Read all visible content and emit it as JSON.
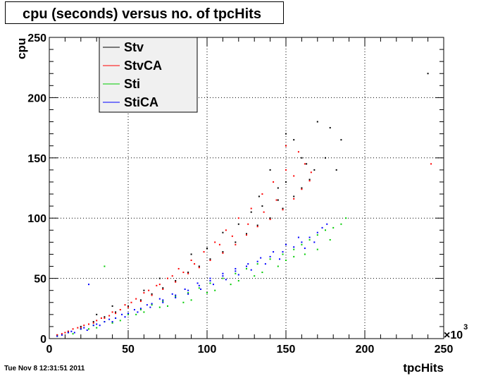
{
  "header": {
    "title": "cpu (seconds) versus no. of tpcHits"
  },
  "footer": {
    "date": "Tue Nov  8 12:31:51 2011"
  },
  "chart_data": {
    "type": "scatter",
    "title": "cpu (seconds) versus no. of tpcHits",
    "xlabel": "tpcHits",
    "ylabel": "cpu",
    "x_multiplier_label": "×10",
    "x_multiplier_exponent": "3",
    "xlim": [
      0,
      250
    ],
    "ylim": [
      0,
      250
    ],
    "x_ticks": [
      "0",
      "50",
      "100",
      "150",
      "200",
      "250"
    ],
    "y_ticks": [
      "0",
      "50",
      "100",
      "150",
      "200",
      "250"
    ],
    "grid": true,
    "legend_position": "top-left",
    "series": [
      {
        "name": "Stv",
        "color": "#000000",
        "points": [
          [
            5,
            3
          ],
          [
            12,
            6
          ],
          [
            20,
            10
          ],
          [
            28,
            14
          ],
          [
            35,
            18
          ],
          [
            42,
            22
          ],
          [
            50,
            27
          ],
          [
            58,
            32
          ],
          [
            65,
            37
          ],
          [
            72,
            42
          ],
          [
            80,
            48
          ],
          [
            88,
            55
          ],
          [
            95,
            60
          ],
          [
            102,
            66
          ],
          [
            110,
            72
          ],
          [
            118,
            80
          ],
          [
            125,
            87
          ],
          [
            132,
            94
          ],
          [
            140,
            100
          ],
          [
            148,
            108
          ],
          [
            155,
            118
          ],
          [
            160,
            125
          ],
          [
            165,
            132
          ],
          [
            150,
            170
          ],
          [
            155,
            165
          ],
          [
            170,
            180
          ],
          [
            178,
            175
          ],
          [
            185,
            165
          ],
          [
            175,
            150
          ],
          [
            182,
            140
          ],
          [
            160,
            150
          ],
          [
            168,
            140
          ],
          [
            140,
            140
          ],
          [
            145,
            125
          ],
          [
            133,
            118
          ],
          [
            128,
            105
          ],
          [
            60,
            40
          ],
          [
            70,
            50
          ],
          [
            40,
            27
          ],
          [
            30,
            20
          ],
          [
            90,
            70
          ],
          [
            100,
            75
          ],
          [
            110,
            88
          ],
          [
            120,
            95
          ],
          [
            135,
            110
          ],
          [
            145,
            115
          ],
          [
            150,
            130
          ],
          [
            163,
            145
          ],
          [
            240,
            220
          ]
        ]
      },
      {
        "name": "StvCA",
        "color": "#ff0000",
        "points": [
          [
            5,
            3
          ],
          [
            12,
            6
          ],
          [
            20,
            9
          ],
          [
            28,
            13
          ],
          [
            35,
            17
          ],
          [
            42,
            21
          ],
          [
            50,
            26
          ],
          [
            58,
            31
          ],
          [
            65,
            36
          ],
          [
            72,
            41
          ],
          [
            80,
            47
          ],
          [
            88,
            54
          ],
          [
            95,
            59
          ],
          [
            102,
            65
          ],
          [
            110,
            71
          ],
          [
            118,
            78
          ],
          [
            125,
            86
          ],
          [
            132,
            93
          ],
          [
            140,
            99
          ],
          [
            148,
            107
          ],
          [
            155,
            116
          ],
          [
            160,
            124
          ],
          [
            165,
            131
          ],
          [
            150,
            160
          ],
          [
            158,
            155
          ],
          [
            162,
            145
          ],
          [
            150,
            140
          ],
          [
            142,
            130
          ],
          [
            135,
            120
          ],
          [
            128,
            108
          ],
          [
            120,
            100
          ],
          [
            112,
            90
          ],
          [
            105,
            80
          ],
          [
            98,
            72
          ],
          [
            90,
            65
          ],
          [
            82,
            58
          ],
          [
            75,
            50
          ],
          [
            68,
            44
          ],
          [
            60,
            38
          ],
          [
            52,
            30
          ],
          [
            45,
            24
          ],
          [
            38,
            19
          ],
          [
            30,
            15
          ],
          [
            22,
            11
          ],
          [
            15,
            8
          ],
          [
            8,
            4
          ],
          [
            166,
            138
          ],
          [
            155,
            135
          ],
          [
            144,
            115
          ],
          [
            136,
            105
          ],
          [
            126,
            95
          ],
          [
            116,
            85
          ],
          [
            108,
            78
          ],
          [
            92,
            62
          ],
          [
            85,
            55
          ],
          [
            78,
            52
          ],
          [
            70,
            45
          ],
          [
            63,
            40
          ],
          [
            55,
            33
          ],
          [
            48,
            28
          ],
          [
            40,
            22
          ],
          [
            33,
            17
          ],
          [
            25,
            12
          ],
          [
            18,
            9
          ],
          [
            10,
            5
          ],
          [
            242,
            145
          ]
        ]
      },
      {
        "name": "Sti",
        "color": "#00cc00",
        "points": [
          [
            5,
            2
          ],
          [
            12,
            5
          ],
          [
            20,
            8
          ],
          [
            28,
            11
          ],
          [
            35,
            14
          ],
          [
            42,
            17
          ],
          [
            50,
            20
          ],
          [
            58,
            24
          ],
          [
            65,
            28
          ],
          [
            72,
            31
          ],
          [
            80,
            35
          ],
          [
            88,
            38
          ],
          [
            95,
            42
          ],
          [
            102,
            46
          ],
          [
            110,
            50
          ],
          [
            118,
            54
          ],
          [
            125,
            58
          ],
          [
            132,
            62
          ],
          [
            140,
            66
          ],
          [
            148,
            70
          ],
          [
            155,
            74
          ],
          [
            160,
            78
          ],
          [
            165,
            82
          ],
          [
            170,
            86
          ],
          [
            175,
            90
          ],
          [
            180,
            92
          ],
          [
            185,
            95
          ],
          [
            188,
            100
          ],
          [
            145,
            60
          ],
          [
            150,
            65
          ],
          [
            135,
            55
          ],
          [
            120,
            48
          ],
          [
            105,
            40
          ],
          [
            90,
            32
          ],
          [
            75,
            27
          ],
          [
            60,
            22
          ],
          [
            45,
            15
          ],
          [
            30,
            9
          ],
          [
            15,
            4
          ],
          [
            170,
            74
          ],
          [
            178,
            82
          ],
          [
            162,
            70
          ],
          [
            155,
            68
          ],
          [
            130,
            52
          ],
          [
            115,
            45
          ],
          [
            100,
            38
          ],
          [
            85,
            30
          ],
          [
            70,
            26
          ],
          [
            55,
            20
          ],
          [
            40,
            13
          ],
          [
            25,
            8
          ],
          [
            35,
            60
          ]
        ]
      },
      {
        "name": "StiCA",
        "color": "#0000ff",
        "points": [
          [
            5,
            2
          ],
          [
            12,
            5
          ],
          [
            20,
            8
          ],
          [
            28,
            11
          ],
          [
            35,
            14
          ],
          [
            42,
            17
          ],
          [
            50,
            21
          ],
          [
            58,
            25
          ],
          [
            65,
            29
          ],
          [
            72,
            32
          ],
          [
            80,
            36
          ],
          [
            88,
            40
          ],
          [
            95,
            44
          ],
          [
            102,
            48
          ],
          [
            110,
            52
          ],
          [
            118,
            56
          ],
          [
            125,
            60
          ],
          [
            132,
            64
          ],
          [
            140,
            68
          ],
          [
            148,
            72
          ],
          [
            155,
            76
          ],
          [
            160,
            80
          ],
          [
            165,
            84
          ],
          [
            170,
            88
          ],
          [
            173,
            92
          ],
          [
            176,
            95
          ],
          [
            158,
            84
          ],
          [
            150,
            78
          ],
          [
            142,
            72
          ],
          [
            134,
            67
          ],
          [
            126,
            62
          ],
          [
            118,
            58
          ],
          [
            110,
            54
          ],
          [
            102,
            50
          ],
          [
            94,
            46
          ],
          [
            86,
            41
          ],
          [
            78,
            37
          ],
          [
            70,
            33
          ],
          [
            62,
            28
          ],
          [
            54,
            24
          ],
          [
            46,
            20
          ],
          [
            38,
            16
          ],
          [
            30,
            12
          ],
          [
            22,
            9
          ],
          [
            14,
            6
          ],
          [
            8,
            3
          ],
          [
            168,
            80
          ],
          [
            162,
            75
          ],
          [
            146,
            66
          ],
          [
            137,
            62
          ],
          [
            128,
            57
          ],
          [
            120,
            53
          ],
          [
            112,
            49
          ],
          [
            104,
            45
          ],
          [
            96,
            41
          ],
          [
            88,
            37
          ],
          [
            80,
            34
          ],
          [
            72,
            30
          ],
          [
            64,
            26
          ],
          [
            56,
            22
          ],
          [
            48,
            18
          ],
          [
            40,
            14
          ],
          [
            32,
            11
          ],
          [
            24,
            7
          ],
          [
            16,
            5
          ],
          [
            25,
            45
          ]
        ]
      }
    ]
  }
}
